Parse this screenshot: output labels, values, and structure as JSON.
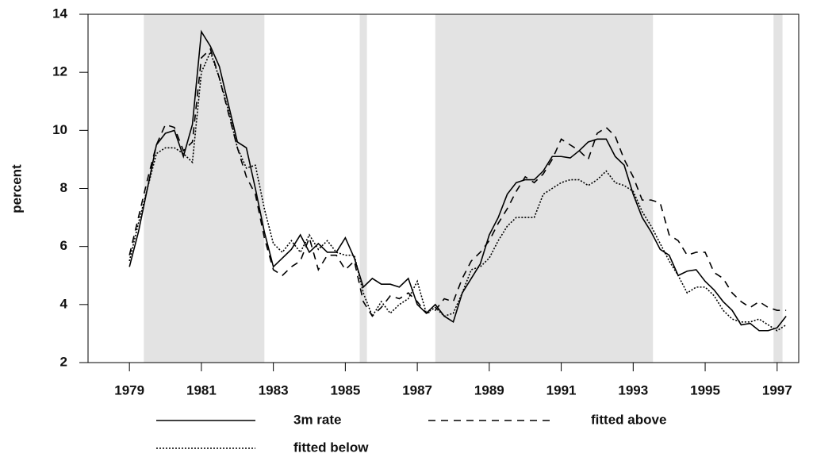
{
  "chart_data": {
    "type": "line",
    "y_label": "percent",
    "x": [
      1979,
      1979.25,
      1979.5,
      1979.75,
      1980,
      1980.25,
      1980.5,
      1980.75,
      1981,
      1981.25,
      1981.5,
      1981.75,
      1982,
      1982.25,
      1982.5,
      1982.75,
      1983,
      1983.25,
      1983.5,
      1983.75,
      1984,
      1984.25,
      1984.5,
      1984.75,
      1985,
      1985.25,
      1985.5,
      1985.75,
      1986,
      1986.25,
      1986.5,
      1986.75,
      1987,
      1987.25,
      1987.5,
      1987.75,
      1988,
      1988.25,
      1988.5,
      1988.75,
      1989,
      1989.25,
      1989.5,
      1989.75,
      1990,
      1990.25,
      1990.5,
      1990.75,
      1991,
      1991.25,
      1991.5,
      1991.75,
      1992,
      1992.25,
      1992.5,
      1992.75,
      1993,
      1993.25,
      1993.5,
      1993.75,
      1994,
      1994.25,
      1994.5,
      1994.75,
      1995,
      1995.25,
      1995.5,
      1995.75,
      1996,
      1996.25,
      1996.5,
      1996.75,
      1997,
      1997.25
    ],
    "series": [
      {
        "name": "3m rate",
        "color": "#000000",
        "style": "solid",
        "values": [
          5.3,
          6.5,
          8.0,
          9.5,
          9.9,
          10.0,
          9.1,
          10.2,
          13.4,
          12.9,
          12.2,
          10.9,
          9.6,
          9.4,
          8.0,
          6.5,
          5.3,
          5.6,
          5.9,
          6.4,
          5.8,
          6.1,
          5.8,
          5.8,
          6.3,
          5.6,
          4.6,
          4.9,
          4.7,
          4.7,
          4.6,
          4.9,
          4.0,
          3.7,
          4.0,
          3.6,
          3.4,
          4.4,
          4.9,
          5.4,
          6.4,
          7.0,
          7.8,
          8.2,
          8.3,
          8.3,
          8.6,
          9.1,
          9.1,
          9.05,
          9.3,
          9.6,
          9.7,
          9.7,
          9.1,
          8.8,
          7.8,
          7.0,
          6.5,
          5.9,
          5.7,
          5.0,
          5.15,
          5.2,
          4.8,
          4.5,
          4.1,
          3.8,
          3.3,
          3.35,
          3.1,
          3.1,
          3.2,
          3.6
        ]
      },
      {
        "name": "fitted above",
        "color": "#000000",
        "style": "dashed",
        "values": [
          5.7,
          7.0,
          8.3,
          9.5,
          10.2,
          10.1,
          9.3,
          9.6,
          12.5,
          12.8,
          11.8,
          10.6,
          9.4,
          8.4,
          7.8,
          6.3,
          5.2,
          5.0,
          5.3,
          5.5,
          6.3,
          5.2,
          5.7,
          5.7,
          5.2,
          5.5,
          4.1,
          3.6,
          3.9,
          4.3,
          4.2,
          4.4,
          4.1,
          3.7,
          3.8,
          4.2,
          4.1,
          4.9,
          5.5,
          5.8,
          6.2,
          6.8,
          7.3,
          7.9,
          8.4,
          8.2,
          8.5,
          9.0,
          9.7,
          9.5,
          9.3,
          9.0,
          9.9,
          10.1,
          9.8,
          9.0,
          8.4,
          7.6,
          7.6,
          7.5,
          6.4,
          6.2,
          5.7,
          5.8,
          5.8,
          5.1,
          4.9,
          4.4,
          4.1,
          3.9,
          4.1,
          3.9,
          3.8,
          3.8
        ]
      },
      {
        "name": "fitted below",
        "color": "#000000",
        "style": "dotted",
        "values": [
          5.5,
          6.8,
          8.0,
          9.2,
          9.4,
          9.4,
          9.2,
          8.9,
          12.0,
          12.7,
          11.8,
          10.7,
          9.4,
          8.7,
          8.8,
          7.3,
          6.1,
          5.8,
          6.2,
          5.8,
          6.4,
          5.9,
          6.2,
          5.8,
          5.7,
          5.7,
          4.4,
          3.6,
          4.1,
          3.7,
          4.0,
          4.2,
          4.8,
          3.7,
          3.9,
          3.6,
          3.7,
          4.4,
          5.2,
          5.3,
          5.6,
          6.2,
          6.7,
          7.0,
          7.0,
          7.0,
          7.8,
          8.0,
          8.2,
          8.3,
          8.3,
          8.1,
          8.3,
          8.6,
          8.2,
          8.1,
          7.9,
          7.2,
          6.7,
          6.1,
          5.5,
          5.0,
          4.4,
          4.6,
          4.6,
          4.3,
          3.8,
          3.5,
          3.4,
          3.4,
          3.5,
          3.3,
          3.1,
          3.3
        ]
      }
    ],
    "shaded_periods": [
      [
        1979.4,
        1982.75
      ],
      [
        1985.4,
        1985.6
      ],
      [
        1987.5,
        1993.55
      ],
      [
        1996.9,
        1997.15
      ]
    ],
    "shade_color": "#e3e3e3",
    "xlim": [
      1977.85,
      1997.6
    ],
    "xticks": [
      1979,
      1981,
      1983,
      1985,
      1987,
      1989,
      1991,
      1993,
      1995,
      1997
    ],
    "ylim": [
      2,
      14
    ],
    "yticks": [
      2,
      4,
      6,
      8,
      10,
      12,
      14
    ],
    "legend": "bottom"
  }
}
